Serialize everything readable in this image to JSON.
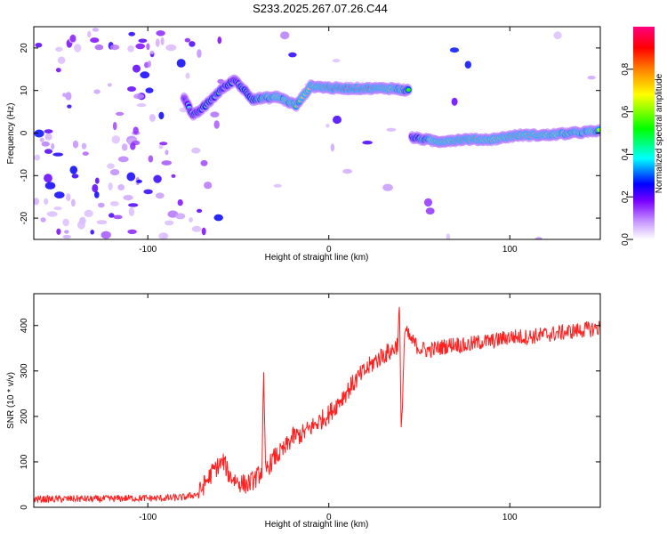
{
  "page": {
    "title": "S233.2025.267.07.26.C44"
  },
  "chart_data": [
    {
      "type": "heatmap",
      "title": "S233.2025.267.07.26.C44",
      "xlabel": "Height of straight line (km)",
      "ylabel": "Frequency (Hz)",
      "xlim": [
        -163,
        150
      ],
      "ylim": [
        -25,
        25
      ],
      "xticks": [
        -100,
        0,
        100
      ],
      "yticks": [
        -20,
        -10,
        0,
        10,
        20
      ],
      "grid": false,
      "colorbar": {
        "label": "Normalized spectral amplitude",
        "range": [
          0.0,
          1.0
        ],
        "ticks": [
          0.0,
          0.2,
          0.4,
          0.6,
          0.8
        ],
        "colors": [
          "#ffffff",
          "#c99cff",
          "#7a00ff",
          "#0000ff",
          "#00ffff",
          "#00ff00",
          "#ffff00",
          "#ff8000",
          "#ff0000",
          "#ff0080"
        ]
      },
      "ridge": [
        {
          "x": -80,
          "y": 8.5,
          "amp": 0.25
        },
        {
          "x": -75,
          "y": 4.0,
          "amp": 0.4
        },
        {
          "x": -68,
          "y": 6.5,
          "amp": 0.45
        },
        {
          "x": -60,
          "y": 10.0,
          "amp": 0.45
        },
        {
          "x": -52,
          "y": 12.5,
          "amp": 0.4
        },
        {
          "x": -42,
          "y": 8.0,
          "amp": 0.5
        },
        {
          "x": -28,
          "y": 8.5,
          "amp": 0.65
        },
        {
          "x": -18,
          "y": 6.5,
          "amp": 0.6
        },
        {
          "x": -10,
          "y": 11.0,
          "amp": 0.7
        },
        {
          "x": 5,
          "y": 10.5,
          "amp": 0.9
        },
        {
          "x": 20,
          "y": 10.5,
          "amp": 0.85
        },
        {
          "x": 35,
          "y": 10.5,
          "amp": 0.7
        },
        {
          "x": 44,
          "y": 10.0,
          "amp": 0.55
        },
        {
          "x": 46,
          "y": -1.0,
          "amp": 0.4
        },
        {
          "x": 60,
          "y": -2.0,
          "amp": 0.7
        },
        {
          "x": 75,
          "y": -1.5,
          "amp": 0.8
        },
        {
          "x": 90,
          "y": -1.5,
          "amp": 0.7
        },
        {
          "x": 105,
          "y": -0.5,
          "amp": 0.75
        },
        {
          "x": 120,
          "y": -0.5,
          "amp": 0.7
        },
        {
          "x": 135,
          "y": 0.0,
          "amp": 0.65
        },
        {
          "x": 150,
          "y": 0.5,
          "amp": 0.6
        }
      ]
    },
    {
      "type": "line",
      "xlabel": "Height of straight line (km)",
      "ylabel": "SNR (10 * v/v)",
      "xlim": [
        -163,
        150
      ],
      "ylim": [
        0,
        470
      ],
      "xticks": [
        -100,
        0,
        100
      ],
      "yticks": [
        0,
        100,
        200,
        300,
        400
      ],
      "grid": false,
      "line_color": "#ff2020",
      "series": [
        {
          "x": [
            -163,
            -150,
            -140,
            -130,
            -120,
            -110,
            -100,
            -90,
            -80,
            -72,
            -68,
            -63,
            -58,
            -55,
            -50,
            -45,
            -40,
            -37,
            -36,
            -35,
            -30,
            -25,
            -20,
            -15,
            -10,
            -5,
            0,
            5,
            10,
            15,
            20,
            25,
            30,
            35,
            38,
            39,
            40,
            42,
            45,
            50,
            55,
            60,
            65,
            70,
            75,
            80,
            85,
            90,
            95,
            100,
            110,
            120,
            130,
            140,
            150
          ],
          "values": [
            18,
            18,
            19,
            18,
            19,
            20,
            20,
            20,
            22,
            30,
            55,
            85,
            100,
            70,
            55,
            50,
            65,
            80,
            285,
            80,
            110,
            125,
            155,
            160,
            175,
            190,
            205,
            230,
            255,
            280,
            300,
            320,
            335,
            345,
            360,
            440,
            160,
            390,
            370,
            350,
            345,
            350,
            355,
            360,
            355,
            360,
            365,
            365,
            370,
            375,
            375,
            380,
            385,
            390,
            395
          ]
        }
      ]
    }
  ]
}
